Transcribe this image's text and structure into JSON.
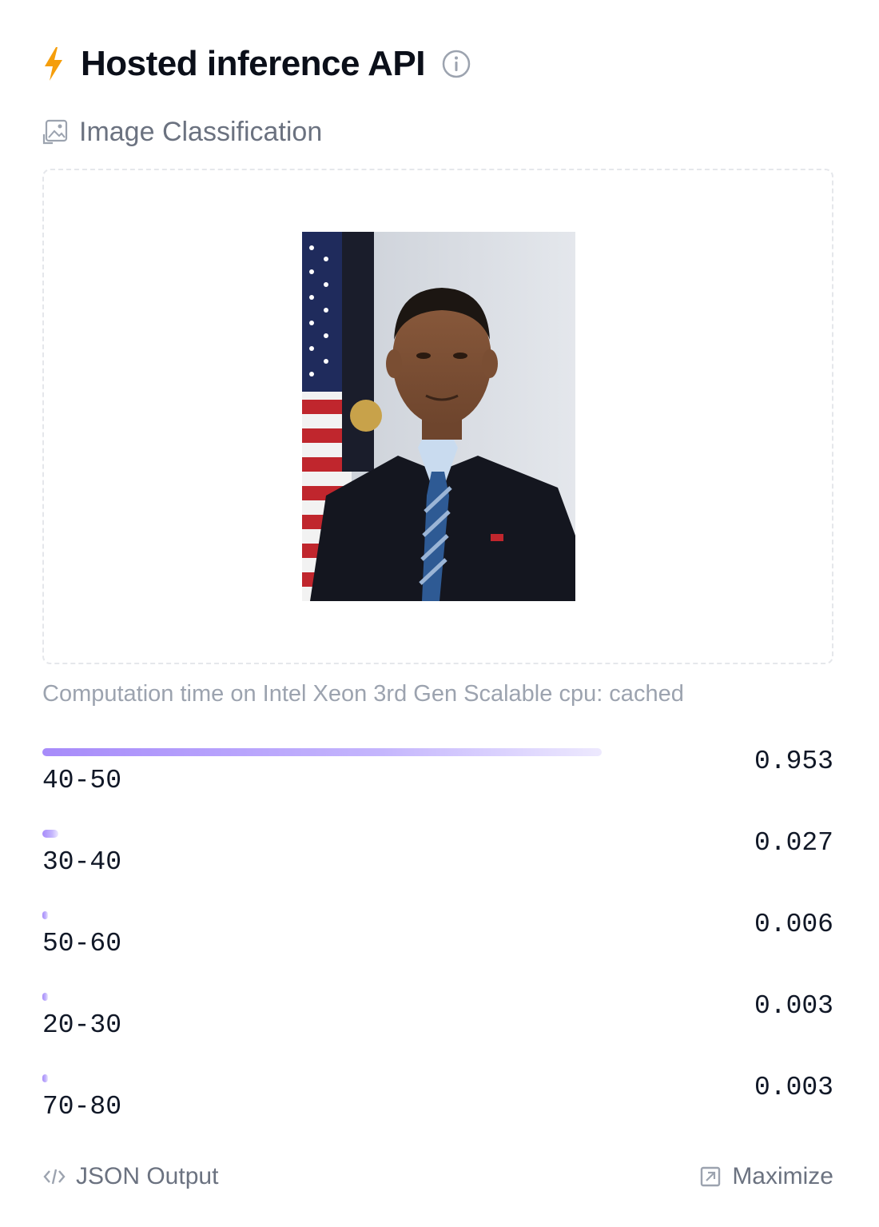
{
  "header": {
    "title": "Hosted inference API",
    "bolt_icon": "lightning-bolt-icon",
    "info_icon": "info-circle-icon",
    "accent_color": "#f59e0b"
  },
  "task": {
    "label": "Image Classification",
    "icon": "image-classification-icon"
  },
  "input_image": {
    "icon": "portrait-photo"
  },
  "computation": {
    "text": "Computation time on Intel Xeon 3rd Gen Scalable cpu: cached"
  },
  "results": [
    {
      "label": "40-50",
      "score": "0.953",
      "value": 0.953
    },
    {
      "label": "30-40",
      "score": "0.027",
      "value": 0.027
    },
    {
      "label": "50-60",
      "score": "0.006",
      "value": 0.006
    },
    {
      "label": "20-30",
      "score": "0.003",
      "value": 0.003
    },
    {
      "label": "70-80",
      "score": "0.003",
      "value": 0.003
    }
  ],
  "footer": {
    "json_output_label": "JSON Output",
    "json_output_icon": "code-icon",
    "maximize_label": "Maximize",
    "maximize_icon": "maximize-icon"
  },
  "colors": {
    "bar": "#a78bfa",
    "muted_text": "#6b7280"
  }
}
